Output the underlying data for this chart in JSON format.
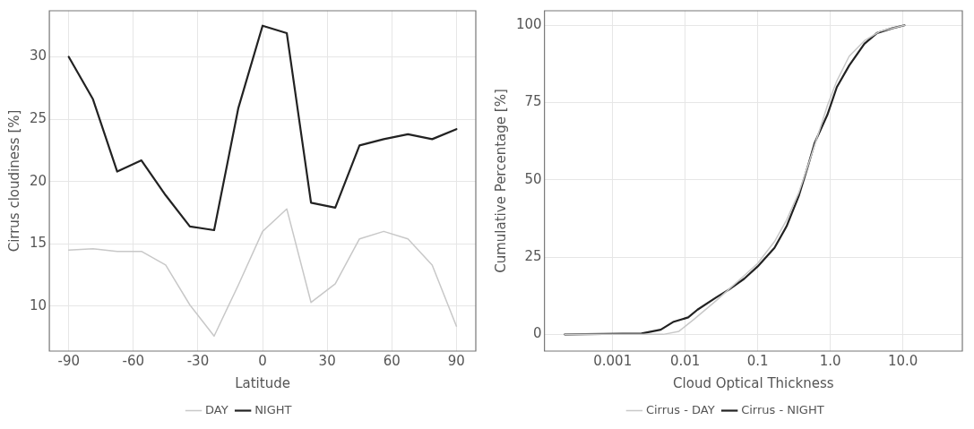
{
  "chart_data": [
    {
      "type": "line",
      "xlabel": "Latitude",
      "ylabel": "Cirrus cloudiness [%]",
      "x": [
        -90,
        -78.75,
        -67.5,
        -56.25,
        -45,
        -33.75,
        -22.5,
        -11.25,
        0,
        11.25,
        22.5,
        33.75,
        45,
        56.25,
        67.5,
        78.75,
        90
      ],
      "series": [
        {
          "name": "DAY",
          "color": "#c8c8c8",
          "values": [
            14.5,
            14.6,
            14.4,
            14.4,
            13.3,
            10.1,
            7.6,
            11.7,
            16.0,
            17.8,
            10.3,
            11.8,
            15.4,
            16.0,
            15.4,
            13.3,
            8.4
          ]
        },
        {
          "name": "NIGHT",
          "color": "#222222",
          "values": [
            30.0,
            26.6,
            20.8,
            21.7,
            18.9,
            16.4,
            16.1,
            25.9,
            32.5,
            31.9,
            18.3,
            17.9,
            22.9,
            23.4,
            23.8,
            23.4,
            24.2
          ]
        }
      ],
      "xlim": [
        -99,
        99
      ],
      "xticks": [
        -90,
        -60,
        -30,
        0,
        30,
        60,
        90
      ],
      "ylim": [
        6.4,
        33.7
      ],
      "yticks": [
        10,
        15,
        20,
        25,
        30
      ],
      "grid": true,
      "legend": "bottom",
      "marker": "none",
      "line_style": "solid"
    },
    {
      "type": "line",
      "xlabel": "Cloud Optical Thickness",
      "ylabel": "Cumulative Percentage [%]",
      "log": "x",
      "series": [
        {
          "name": "Cirrus - DAY",
          "color": "#c8c8c8",
          "x": [
            0.00022,
            0.0025,
            0.005,
            0.0082,
            0.0134,
            0.027,
            0.065,
            0.1,
            0.17,
            0.25,
            0.37,
            0.55,
            0.91,
            1.23,
            1.82,
            2.95,
            4.8,
            10.5
          ],
          "values": [
            0,
            0,
            0,
            1,
            5,
            11,
            19,
            23,
            30,
            37,
            46,
            58,
            74,
            82,
            90,
            95,
            98,
            100
          ]
        },
        {
          "name": "Cirrus - NIGHT",
          "color": "#222222",
          "x": [
            0.00022,
            0.0025,
            0.0046,
            0.0068,
            0.011,
            0.0148,
            0.027,
            0.04,
            0.065,
            0.1,
            0.17,
            0.25,
            0.37,
            0.5,
            0.61,
            0.91,
            1.23,
            1.82,
            2.95,
            4.4,
            7.1,
            10.5
          ],
          "values": [
            0,
            0.3,
            1.5,
            4,
            5.5,
            8,
            12,
            14.5,
            18,
            22,
            28,
            35,
            45,
            55,
            62,
            71,
            80,
            87,
            94,
            97.5,
            99,
            100
          ]
        }
      ],
      "xlim": [
        0.000115,
        66
      ],
      "xticks": [
        0.001,
        0.01,
        0.1,
        {
          "value": 1,
          "label": "1.0"
        },
        {
          "value": 10,
          "label": "10.0"
        }
      ],
      "ylim": [
        -5.4,
        104.7
      ],
      "yticks": [
        0,
        25,
        50,
        75,
        100
      ],
      "grid": true,
      "legend": "bottom",
      "marker": "none",
      "line_style": "solid"
    }
  ]
}
